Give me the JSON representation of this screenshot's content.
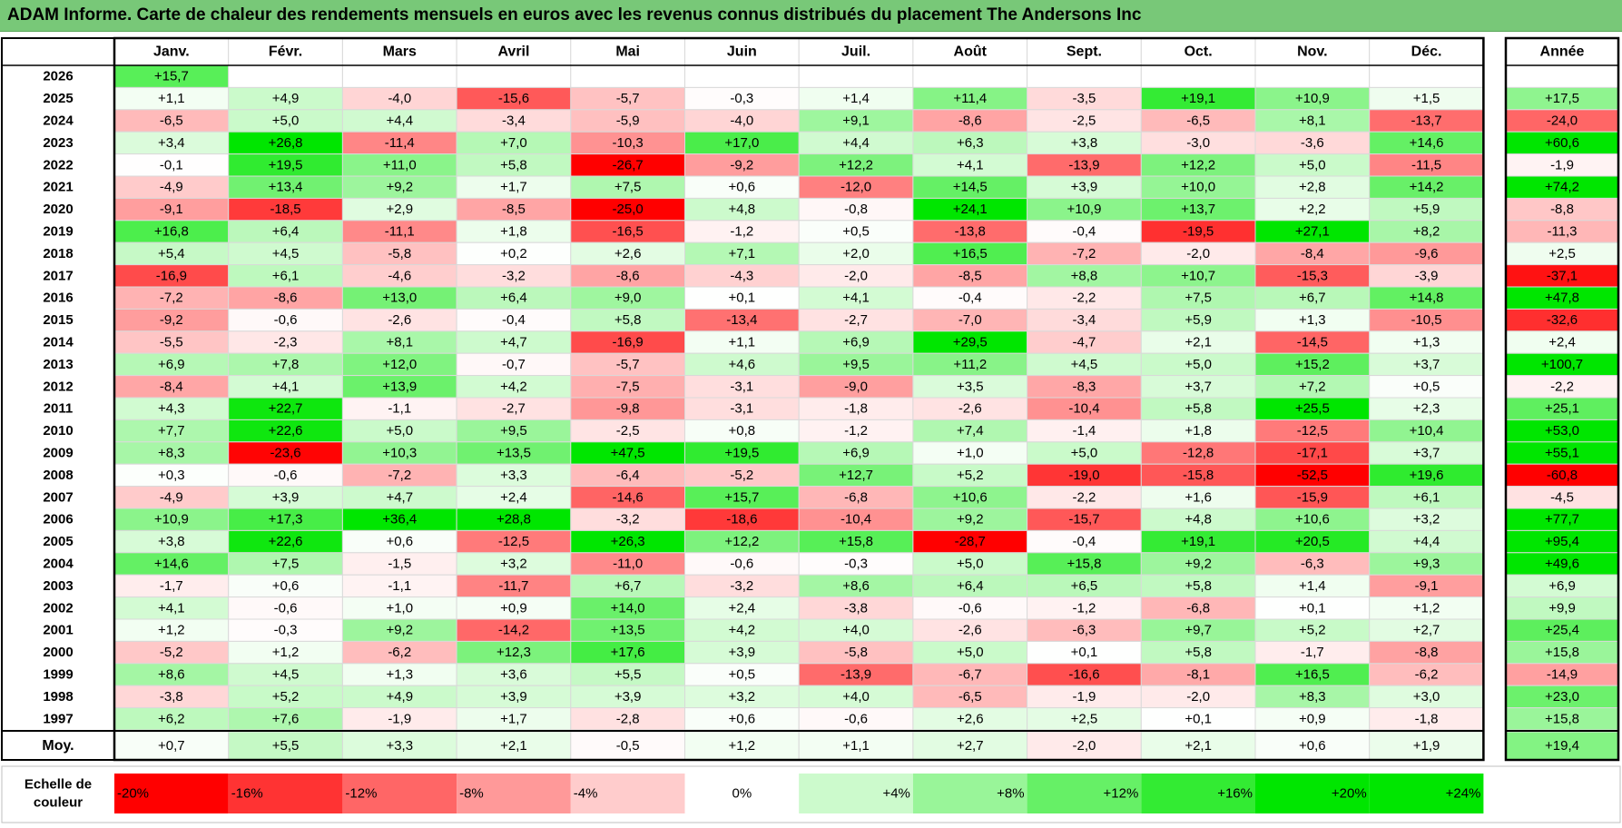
{
  "title": "ADAM Informe. Carte de chaleur des rendements mensuels en euros avec les revenus connus distribués du placement The Andersons Inc",
  "chart_data": {
    "type": "heatmap",
    "title": "ADAM Informe. Carte de chaleur des rendements mensuels en euros avec les revenus connus distribués du placement The Andersons Inc",
    "months": [
      "Janv.",
      "Févr.",
      "Mars",
      "Avril",
      "Mai",
      "Juin",
      "Juil.",
      "Août",
      "Sept.",
      "Oct.",
      "Nov.",
      "Déc."
    ],
    "year_header": "Année",
    "rows": [
      {
        "year": "2026",
        "values": [
          "+15,7",
          "",
          "",
          "",
          "",
          "",
          "",
          "",
          "",
          "",
          "",
          ""
        ],
        "annual": ""
      },
      {
        "year": "2025",
        "values": [
          "+1,1",
          "+4,9",
          "-4,0",
          "-15,6",
          "-5,7",
          "-0,3",
          "+1,4",
          "+11,4",
          "-3,5",
          "+19,1",
          "+10,9",
          "+1,5"
        ],
        "annual": "+17,5"
      },
      {
        "year": "2024",
        "values": [
          "-6,5",
          "+5,0",
          "+4,4",
          "-3,4",
          "-5,9",
          "-4,0",
          "+9,1",
          "-8,6",
          "-2,5",
          "-6,5",
          "+8,1",
          "-13,7"
        ],
        "annual": "-24,0"
      },
      {
        "year": "2023",
        "values": [
          "+3,4",
          "+26,8",
          "-11,4",
          "+7,0",
          "-10,3",
          "+17,0",
          "+4,4",
          "+6,3",
          "+3,8",
          "-3,0",
          "-3,6",
          "+14,6"
        ],
        "annual": "+60,6"
      },
      {
        "year": "2022",
        "values": [
          "-0,1",
          "+19,5",
          "+11,0",
          "+5,8",
          "-26,7",
          "-9,2",
          "+12,2",
          "+4,1",
          "-13,9",
          "+12,2",
          "+5,0",
          "-11,5"
        ],
        "annual": "-1,9"
      },
      {
        "year": "2021",
        "values": [
          "-4,9",
          "+13,4",
          "+9,2",
          "+1,7",
          "+7,5",
          "+0,6",
          "-12,0",
          "+14,5",
          "+3,9",
          "+10,0",
          "+2,8",
          "+14,2"
        ],
        "annual": "+74,2"
      },
      {
        "year": "2020",
        "values": [
          "-9,1",
          "-18,5",
          "+2,9",
          "-8,5",
          "-25,0",
          "+4,8",
          "-0,8",
          "+24,1",
          "+10,9",
          "+13,7",
          "+2,2",
          "+5,9"
        ],
        "annual": "-8,8"
      },
      {
        "year": "2019",
        "values": [
          "+16,8",
          "+6,4",
          "-11,1",
          "+1,8",
          "-16,5",
          "-1,2",
          "+0,5",
          "-13,8",
          "-0,4",
          "-19,5",
          "+27,1",
          "+8,2"
        ],
        "annual": "-11,3"
      },
      {
        "year": "2018",
        "values": [
          "+5,4",
          "+4,5",
          "-5,8",
          "+0,2",
          "+2,6",
          "+7,1",
          "+2,0",
          "+16,5",
          "-7,2",
          "-2,0",
          "-8,4",
          "-9,6"
        ],
        "annual": "+2,5"
      },
      {
        "year": "2017",
        "values": [
          "-16,9",
          "+6,1",
          "-4,6",
          "-3,2",
          "-8,6",
          "-4,3",
          "-2,0",
          "-8,5",
          "+8,8",
          "+10,7",
          "-15,3",
          "-3,9"
        ],
        "annual": "-37,1"
      },
      {
        "year": "2016",
        "values": [
          "-7,2",
          "-8,6",
          "+13,0",
          "+6,4",
          "+9,0",
          "+0,1",
          "+4,1",
          "-0,4",
          "-2,2",
          "+7,5",
          "+6,7",
          "+14,8"
        ],
        "annual": "+47,8"
      },
      {
        "year": "2015",
        "values": [
          "-9,2",
          "-0,6",
          "-2,6",
          "-0,4",
          "+5,8",
          "-13,4",
          "-2,7",
          "-7,0",
          "-3,4",
          "+5,9",
          "+1,3",
          "-10,5"
        ],
        "annual": "-32,6"
      },
      {
        "year": "2014",
        "values": [
          "-5,5",
          "-2,3",
          "+8,1",
          "+4,7",
          "-16,9",
          "+1,1",
          "+6,9",
          "+29,5",
          "-4,7",
          "+2,1",
          "-14,5",
          "+1,3"
        ],
        "annual": "+2,4"
      },
      {
        "year": "2013",
        "values": [
          "+6,9",
          "+7,8",
          "+12,0",
          "-0,7",
          "-5,7",
          "+4,6",
          "+9,5",
          "+11,2",
          "+4,5",
          "+5,0",
          "+15,2",
          "+3,7"
        ],
        "annual": "+100,7"
      },
      {
        "year": "2012",
        "values": [
          "-8,4",
          "+4,1",
          "+13,9",
          "+4,2",
          "-7,5",
          "-3,1",
          "-9,0",
          "+3,5",
          "-8,3",
          "+3,7",
          "+7,2",
          "+0,5"
        ],
        "annual": "-2,2"
      },
      {
        "year": "2011",
        "values": [
          "+4,3",
          "+22,7",
          "-1,1",
          "-2,7",
          "-9,8",
          "-3,1",
          "-1,8",
          "-2,6",
          "-10,4",
          "+5,8",
          "+25,5",
          "+2,3"
        ],
        "annual": "+25,1"
      },
      {
        "year": "2010",
        "values": [
          "+7,7",
          "+22,6",
          "+5,0",
          "+9,5",
          "-2,5",
          "+0,8",
          "-1,2",
          "+7,4",
          "-1,4",
          "+1,8",
          "-12,5",
          "+10,4"
        ],
        "annual": "+53,0"
      },
      {
        "year": "2009",
        "values": [
          "+8,3",
          "-23,6",
          "+10,3",
          "+13,5",
          "+47,5",
          "+19,5",
          "+6,9",
          "+1,0",
          "+5,0",
          "-12,8",
          "-17,1",
          "+3,7"
        ],
        "annual": "+55,1"
      },
      {
        "year": "2008",
        "values": [
          "+0,3",
          "-0,6",
          "-7,2",
          "+3,3",
          "-6,4",
          "-5,2",
          "+12,7",
          "+5,2",
          "-19,0",
          "-15,8",
          "-52,5",
          "+19,6"
        ],
        "annual": "-60,8"
      },
      {
        "year": "2007",
        "values": [
          "-4,9",
          "+3,9",
          "+4,7",
          "+2,4",
          "-14,6",
          "+15,7",
          "-6,8",
          "+10,6",
          "-2,2",
          "+1,6",
          "-15,9",
          "+6,1"
        ],
        "annual": "-4,5"
      },
      {
        "year": "2006",
        "values": [
          "+10,9",
          "+17,3",
          "+36,4",
          "+28,8",
          "-3,2",
          "-18,6",
          "-10,4",
          "+9,2",
          "-15,7",
          "+4,8",
          "+10,6",
          "+3,2"
        ],
        "annual": "+77,7"
      },
      {
        "year": "2005",
        "values": [
          "+3,8",
          "+22,6",
          "+0,6",
          "-12,5",
          "+26,3",
          "+12,2",
          "+15,8",
          "-28,7",
          "-0,4",
          "+19,1",
          "+20,5",
          "+4,4"
        ],
        "annual": "+95,4"
      },
      {
        "year": "2004",
        "values": [
          "+14,6",
          "+7,5",
          "-1,5",
          "+3,2",
          "-11,0",
          "-0,6",
          "-0,3",
          "+5,0",
          "+15,8",
          "+9,2",
          "-6,3",
          "+9,3"
        ],
        "annual": "+49,6"
      },
      {
        "year": "2003",
        "values": [
          "-1,7",
          "+0,6",
          "-1,1",
          "-11,7",
          "+6,7",
          "-3,2",
          "+8,6",
          "+6,4",
          "+6,5",
          "+5,8",
          "+1,4",
          "-9,1"
        ],
        "annual": "+6,9"
      },
      {
        "year": "2002",
        "values": [
          "+4,1",
          "-0,6",
          "+1,0",
          "+0,9",
          "+14,0",
          "+2,4",
          "-3,8",
          "-0,6",
          "-1,2",
          "-6,8",
          "+0,1",
          "+1,2"
        ],
        "annual": "+9,9"
      },
      {
        "year": "2001",
        "values": [
          "+1,2",
          "-0,3",
          "+9,2",
          "-14,2",
          "+13,5",
          "+4,2",
          "+4,0",
          "-2,6",
          "-6,3",
          "+9,7",
          "+5,2",
          "+2,7"
        ],
        "annual": "+25,4"
      },
      {
        "year": "2000",
        "values": [
          "-5,2",
          "+1,2",
          "-6,2",
          "+12,3",
          "+17,6",
          "+3,9",
          "-5,8",
          "+5,0",
          "+0,1",
          "+5,8",
          "-1,7",
          "-8,8"
        ],
        "annual": "+15,8"
      },
      {
        "year": "1999",
        "values": [
          "+8,6",
          "+4,5",
          "+1,3",
          "+3,6",
          "+5,5",
          "+0,5",
          "-13,9",
          "-6,7",
          "-16,6",
          "-8,1",
          "+16,5",
          "-6,2"
        ],
        "annual": "-14,9"
      },
      {
        "year": "1998",
        "values": [
          "-3,8",
          "+5,2",
          "+4,9",
          "+3,9",
          "+3,9",
          "+3,2",
          "+4,0",
          "-6,5",
          "-1,9",
          "-2,0",
          "+8,3",
          "+3,0"
        ],
        "annual": "+23,0"
      },
      {
        "year": "1997",
        "values": [
          "+6,2",
          "+7,6",
          "-1,9",
          "+1,7",
          "-2,8",
          "+0,6",
          "-0,6",
          "+2,6",
          "+2,5",
          "+0,1",
          "+0,9",
          "-1,8"
        ],
        "annual": "+15,8"
      }
    ],
    "average_row": {
      "label": "Moy.",
      "values": [
        "+0,7",
        "+5,5",
        "+3,3",
        "+2,1",
        "-0,5",
        "+1,2",
        "+1,1",
        "+2,7",
        "-2,0",
        "+2,1",
        "+0,6",
        "+1,9"
      ],
      "annual": "+19,4"
    },
    "color_scale": {
      "label_line1": "Echelle de",
      "label_line2": "couleur",
      "stops": [
        "-20%",
        "-16%",
        "-12%",
        "-8%",
        "-4%",
        "0%",
        "+4%",
        "+8%",
        "+12%",
        "+16%",
        "+20%",
        "+24%"
      ],
      "stop_values": [
        -20,
        -16,
        -12,
        -8,
        -4,
        0,
        4,
        8,
        12,
        16,
        20,
        24
      ]
    },
    "colors": {
      "title_bg": "#78c878",
      "neg_max": "#ff0000",
      "neutral": "#ffffff",
      "pos_max": "#00e600",
      "border": "#000000"
    }
  }
}
